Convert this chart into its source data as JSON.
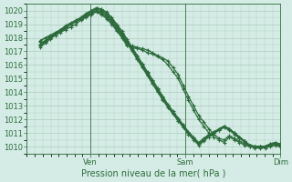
{
  "xlabel": "Pression niveau de la mer( hPa )",
  "xlim": [
    0,
    96
  ],
  "ylim": [
    1009.5,
    1020.5
  ],
  "yticks": [
    1010,
    1011,
    1012,
    1013,
    1014,
    1015,
    1016,
    1017,
    1018,
    1019,
    1020
  ],
  "xtick_labels": [
    "Ven",
    "Sam",
    "Dim"
  ],
  "xtick_positions": [
    24,
    60,
    96
  ],
  "vline_positions": [
    24,
    60,
    96
  ],
  "bg_color": "#d4ece5",
  "grid_color": "#b0ccbf",
  "line_color": "#2d6b3c",
  "line_width": 0.9,
  "marker": "+",
  "markersize": 3.5,
  "markeredgewidth": 0.8,
  "x_start": 5,
  "series": [
    [
      1017.5,
      1017.8,
      1018.0,
      1018.3,
      1018.5,
      1018.8,
      1019.0,
      1019.2,
      1019.5,
      1019.8,
      1020.0,
      1020.2,
      1020.1,
      1019.8,
      1019.4,
      1018.9,
      1018.4,
      1017.8,
      1017.2,
      1016.6,
      1016.0,
      1015.4,
      1014.8,
      1014.2,
      1013.6,
      1013.0,
      1012.5,
      1012.0,
      1011.5,
      1011.0,
      1010.6,
      1010.2,
      1010.5,
      1010.8,
      1011.0,
      1011.2,
      1011.5,
      1011.3,
      1011.0,
      1010.7,
      1010.4,
      1010.1,
      1010.0,
      1010.0,
      1010.0,
      1010.1,
      1010.2,
      1010.0
    ],
    [
      1017.3,
      1017.6,
      1017.9,
      1018.2,
      1018.5,
      1018.7,
      1019.0,
      1019.2,
      1019.4,
      1019.6,
      1019.8,
      1020.0,
      1019.9,
      1019.6,
      1019.2,
      1018.7,
      1018.2,
      1017.6,
      1017.0,
      1016.4,
      1015.8,
      1015.2,
      1014.6,
      1014.0,
      1013.4,
      1012.9,
      1012.4,
      1011.9,
      1011.4,
      1010.9,
      1010.5,
      1010.1,
      1010.4,
      1010.7,
      1011.0,
      1011.2,
      1011.4,
      1011.2,
      1010.9,
      1010.6,
      1010.3,
      1010.0,
      1009.9,
      1009.9,
      1009.9,
      1010.0,
      1010.1,
      1010.0
    ],
    [
      1017.7,
      1018.0,
      1018.2,
      1018.4,
      1018.6,
      1018.9,
      1019.1,
      1019.3,
      1019.5,
      1019.7,
      1019.9,
      1020.1,
      1020.0,
      1019.7,
      1019.3,
      1018.8,
      1018.3,
      1017.7,
      1017.1,
      1016.5,
      1015.9,
      1015.3,
      1014.7,
      1014.1,
      1013.5,
      1012.9,
      1012.4,
      1011.9,
      1011.5,
      1011.0,
      1010.6,
      1010.2,
      1010.5,
      1010.8,
      1011.0,
      1011.3,
      1011.5,
      1011.3,
      1011.0,
      1010.7,
      1010.4,
      1010.1,
      1010.0,
      1010.0,
      1010.0,
      1010.1,
      1010.2,
      1010.1
    ],
    [
      1017.8,
      1018.0,
      1018.1,
      1018.3,
      1018.6,
      1018.8,
      1019.0,
      1019.2,
      1019.4,
      1019.6,
      1019.8,
      1020.0,
      1019.8,
      1019.5,
      1019.1,
      1018.6,
      1018.1,
      1017.5,
      1017.4,
      1017.3,
      1017.2,
      1017.1,
      1016.9,
      1016.7,
      1016.5,
      1016.3,
      1015.8,
      1015.3,
      1014.5,
      1013.7,
      1013.0,
      1012.3,
      1011.8,
      1011.3,
      1010.9,
      1010.6,
      1010.5,
      1010.8,
      1010.6,
      1010.4,
      1010.2,
      1010.1,
      1010.0,
      1010.0,
      1010.0,
      1010.2,
      1010.3,
      1010.2
    ],
    [
      1017.5,
      1017.8,
      1018.1,
      1018.3,
      1018.5,
      1018.7,
      1019.0,
      1019.2,
      1019.4,
      1019.7,
      1020.0,
      1020.2,
      1020.1,
      1019.9,
      1019.5,
      1019.0,
      1018.5,
      1017.9,
      1017.3,
      1016.7,
      1016.1,
      1015.5,
      1014.9,
      1014.3,
      1013.7,
      1013.1,
      1012.6,
      1012.1,
      1011.6,
      1011.1,
      1010.7,
      1010.3,
      1010.6,
      1010.9,
      1011.1,
      1011.3,
      1011.5,
      1011.3,
      1011.0,
      1010.7,
      1010.4,
      1010.1,
      1010.0,
      1010.0,
      1010.0,
      1010.1,
      1010.2,
      1010.1
    ],
    [
      1017.4,
      1017.7,
      1018.0,
      1018.2,
      1018.4,
      1018.6,
      1018.8,
      1019.0,
      1019.3,
      1019.5,
      1019.7,
      1019.9,
      1019.7,
      1019.4,
      1019.0,
      1018.5,
      1018.0,
      1017.4,
      1017.3,
      1017.2,
      1017.1,
      1016.9,
      1016.8,
      1016.6,
      1016.4,
      1016.0,
      1015.5,
      1015.0,
      1014.2,
      1013.4,
      1012.7,
      1012.0,
      1011.5,
      1011.0,
      1010.7,
      1010.5,
      1010.3,
      1010.7,
      1010.5,
      1010.3,
      1010.1,
      1010.0,
      1010.0,
      1010.0,
      1010.0,
      1010.2,
      1010.3,
      1010.0
    ]
  ]
}
